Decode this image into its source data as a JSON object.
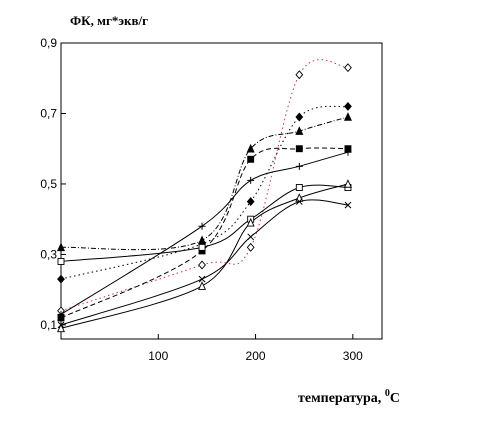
{
  "chart_data": {
    "type": "scatter",
    "title": "",
    "ylabel": "ФК, мг*экв/г",
    "xlabel": "температура, ",
    "xlabel_unit_sup": "0",
    "xlabel_unit": "С",
    "xlim": [
      0,
      330
    ],
    "ylim": [
      0.06,
      0.9
    ],
    "x_ticks": [
      100,
      200,
      300
    ],
    "x_tick_labels": [
      "100",
      "200",
      "300"
    ],
    "y_ticks": [
      0.1,
      0.3,
      0.5,
      0.7,
      0.9
    ],
    "y_tick_labels": [
      "0,1",
      "0,3",
      "0,5",
      "0,7",
      "0,9"
    ],
    "grid": false,
    "legend": "none",
    "series": [
      {
        "marker": "diamond-open",
        "line": "dotted",
        "color": "#cc3344",
        "x": [
          0,
          145,
          195,
          245,
          295
        ],
        "y": [
          0.14,
          0.27,
          0.32,
          0.81,
          0.83
        ]
      },
      {
        "marker": "diamond-filled",
        "line": "dotted",
        "color": "#000000",
        "x": [
          0,
          145,
          195,
          245,
          295
        ],
        "y": [
          0.23,
          0.33,
          0.45,
          0.69,
          0.72
        ]
      },
      {
        "marker": "triangle-filled",
        "line": "dash-dot",
        "color": "#000000",
        "x": [
          0,
          145,
          195,
          245,
          295
        ],
        "y": [
          0.32,
          0.34,
          0.6,
          0.65,
          0.69
        ]
      },
      {
        "marker": "square-filled",
        "line": "dashed",
        "color": "#000000",
        "x": [
          0,
          145,
          195,
          245,
          295
        ],
        "y": [
          0.12,
          0.31,
          0.57,
          0.6,
          0.6
        ]
      },
      {
        "marker": "plus",
        "line": "solid",
        "color": "#000000",
        "x": [
          0,
          145,
          195,
          245,
          295
        ],
        "y": [
          0.13,
          0.38,
          0.51,
          0.55,
          0.59
        ]
      },
      {
        "marker": "square-open",
        "line": "solid",
        "color": "#000000",
        "x": [
          0,
          145,
          195,
          245,
          295
        ],
        "y": [
          0.28,
          0.32,
          0.4,
          0.49,
          0.49
        ]
      },
      {
        "marker": "triangle-open",
        "line": "solid",
        "color": "#000000",
        "x": [
          0,
          145,
          195,
          245,
          295
        ],
        "y": [
          0.09,
          0.21,
          0.39,
          0.46,
          0.5
        ]
      },
      {
        "marker": "cross",
        "line": "solid",
        "color": "#000000",
        "x": [
          0,
          145,
          195,
          245,
          295
        ],
        "y": [
          0.1,
          0.23,
          0.35,
          0.45,
          0.44
        ]
      }
    ]
  }
}
